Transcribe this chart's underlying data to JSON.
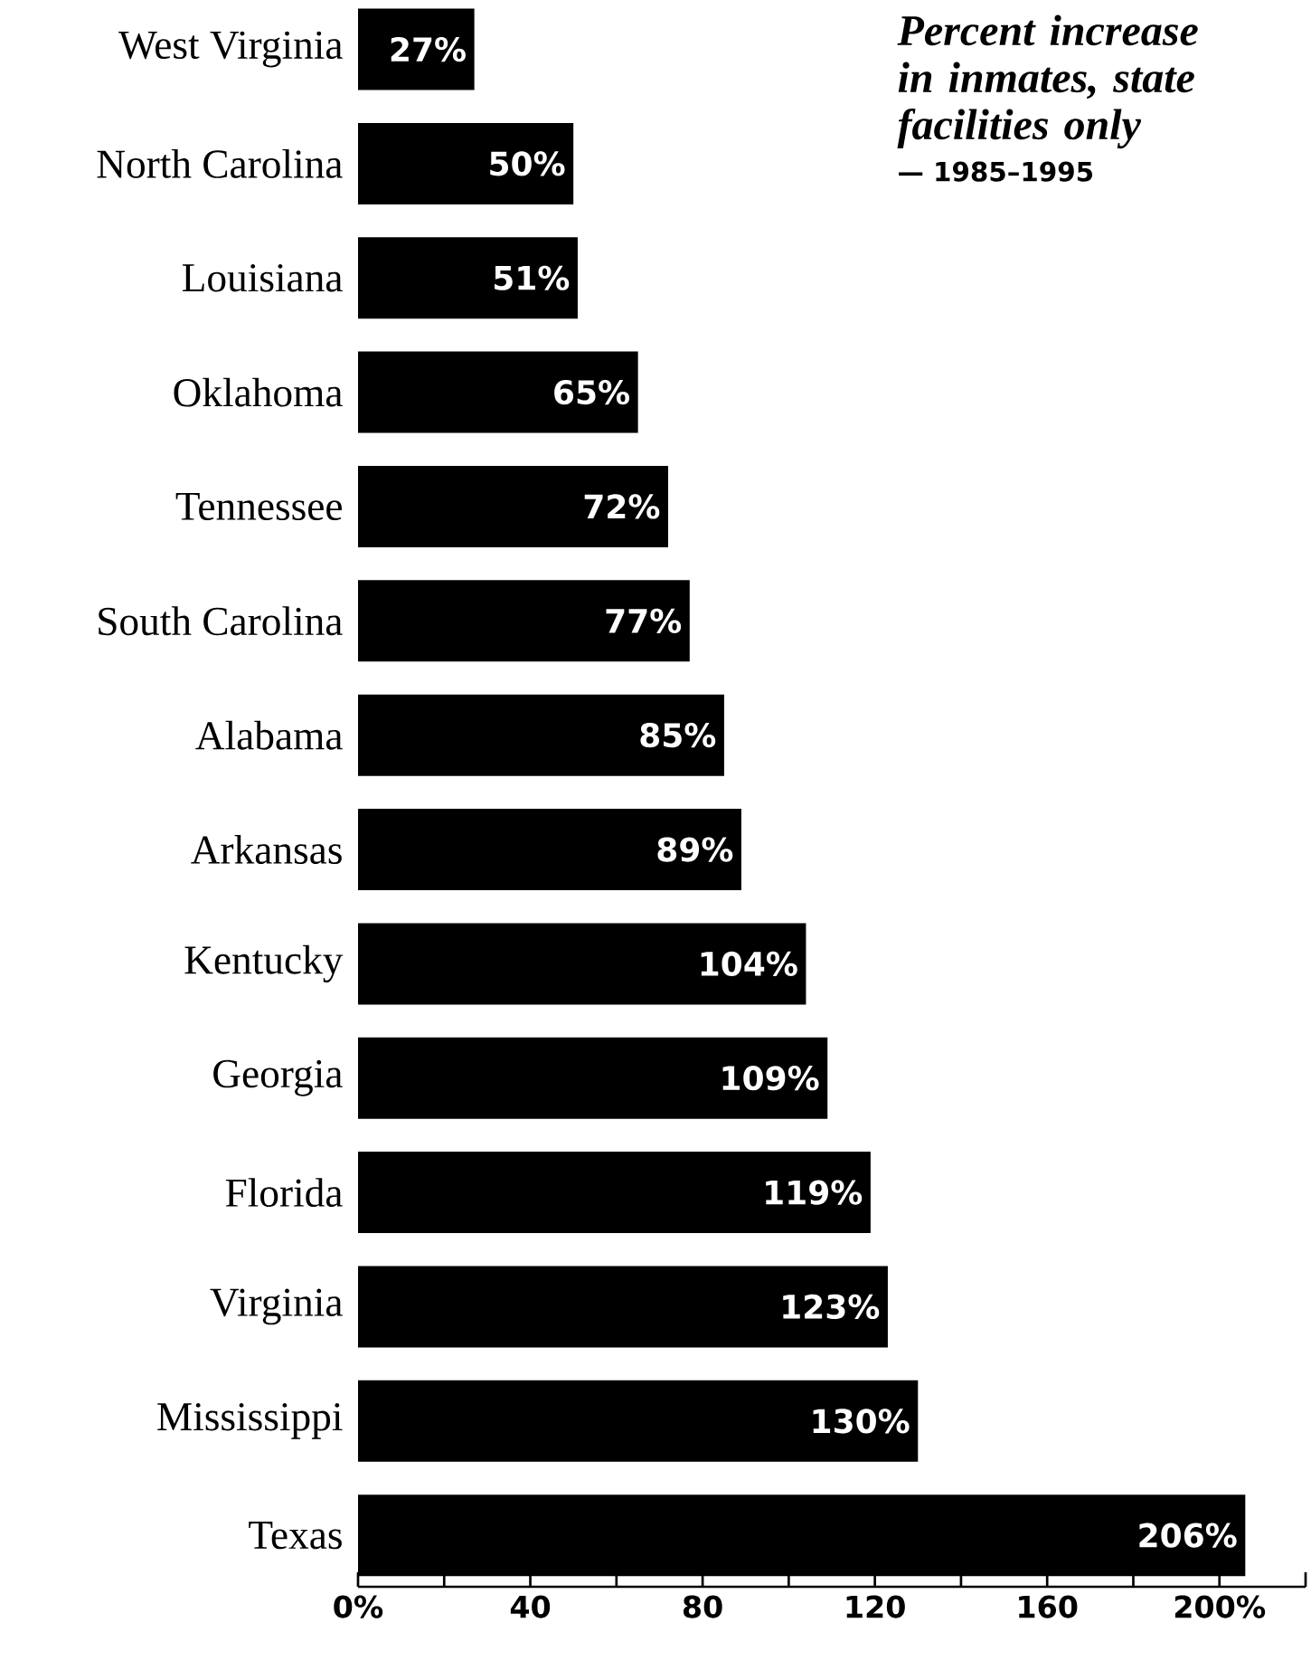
{
  "chart_data": {
    "type": "bar",
    "orientation": "horizontal",
    "title": "*Percent increase in inmates, state facilities only*",
    "subtitle": "— 1985–1995",
    "categories": [
      "West Virginia",
      "North Carolina",
      "Louisiana",
      "Oklahoma",
      "Tennessee",
      "South Carolina",
      "Alabama",
      "Arkansas",
      "Kentucky",
      "Georgia",
      "Florida",
      "Virginia",
      "Mississippi",
      "Texas"
    ],
    "values": [
      27,
      50,
      51,
      65,
      72,
      77,
      85,
      89,
      104,
      109,
      119,
      123,
      130,
      206
    ],
    "value_labels": [
      "27%",
      "50%",
      "51%",
      "65%",
      "72%",
      "77%",
      "85%",
      "89%",
      "104%",
      "109%",
      "119%",
      "123%",
      "130%",
      "206%"
    ],
    "color": "#000000",
    "xlim": [
      0,
      220
    ],
    "xticks": [
      {
        "value": 0,
        "label": "0%"
      },
      {
        "value": 20,
        "label": null
      },
      40,
      {
        "value": 60,
        "label": null
      },
      80,
      {
        "value": 100,
        "label": null
      },
      120,
      {
        "value": 140,
        "label": null
      },
      160,
      {
        "value": 180,
        "label": null
      },
      {
        "value": 200,
        "label": "200%"
      },
      {
        "value": 220,
        "label": null
      }
    ],
    "grid": false
  }
}
